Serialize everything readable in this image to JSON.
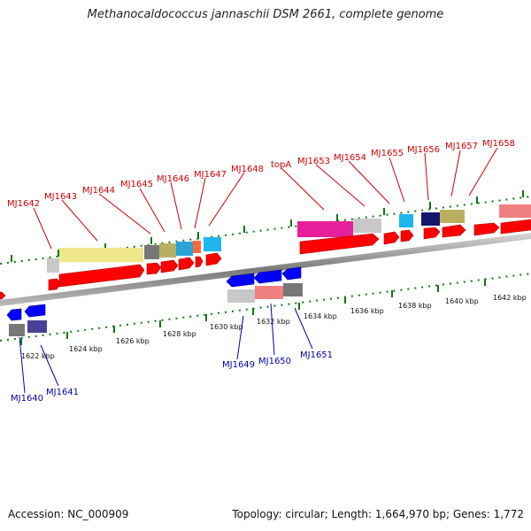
{
  "title": "Methanocaldococcus jannaschii DSM 2661, complete genome",
  "footer": {
    "accession": "Accession: NC_000909",
    "topology": "Topology: circular; Length: 1,664,970 bp; Genes: 1,772"
  },
  "colors": {
    "forward_label": "#cc0000",
    "reverse_label": "#0000aa",
    "cds_forward": "#ff0000",
    "cds_reverse": "#0000ff",
    "scale_tick": "#117711",
    "backbone": "#888888"
  },
  "kbp_labels": [
    "1622 kbp",
    "1624 kbp",
    "1626 kbp",
    "1628 kbp",
    "1630 kbp",
    "1632 kbp",
    "1634 kbp",
    "1636 kbp",
    "1638 kbp",
    "1640 kbp",
    "1642 kbp"
  ],
  "forward_genes": [
    "MJ1642",
    "MJ1643",
    "MJ1644",
    "MJ1645",
    "MJ1646",
    "MJ1647",
    "MJ1648",
    "topA",
    "MJ1653",
    "MJ1654",
    "MJ1655",
    "MJ1656",
    "MJ1657",
    "MJ1658"
  ],
  "reverse_genes": [
    "MJ1640",
    "MJ1641",
    "MJ1649",
    "MJ1650",
    "MJ1651"
  ]
}
